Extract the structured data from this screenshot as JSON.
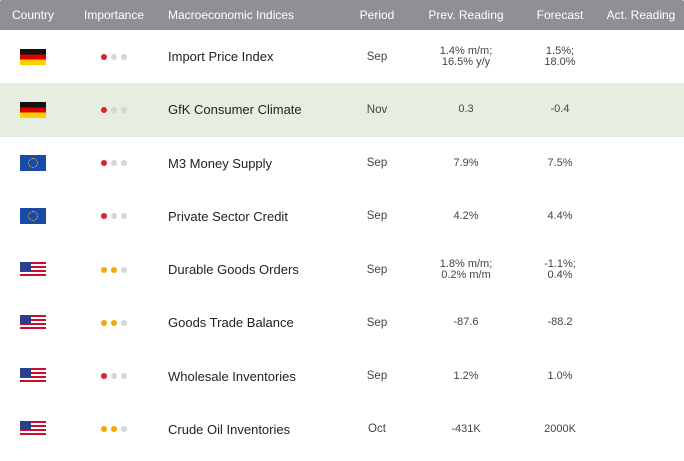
{
  "headers": {
    "country": "Country",
    "importance": "Importance",
    "indices": "Macroeconomic Indices",
    "period": "Period",
    "prev": "Prev. Reading",
    "forecast": "Forecast",
    "actual": "Act. Reading"
  },
  "colors": {
    "header_bg": "#8f9095",
    "highlight_row": "#e6eee2",
    "importance_high": "#e0202a",
    "importance_medium": "#f6a800",
    "importance_off": "#d6d6d6"
  },
  "rows": [
    {
      "country_flag": "germany-flag-icon",
      "importance_level": 1,
      "importance_color": "red",
      "indicator": "Import Price Index",
      "period": "Sep",
      "prev_line1": "1.4% m/m;",
      "prev_line2": "16.5% y/y",
      "forecast_line1": "1.5%;",
      "forecast_line2": "18.0%",
      "actual": ""
    },
    {
      "country_flag": "germany-flag-icon",
      "importance_level": 1,
      "importance_color": "red",
      "indicator": "GfK Consumer Climate",
      "period": "Nov",
      "prev_line1": "0.3",
      "prev_line2": "",
      "forecast_line1": "-0.4",
      "forecast_line2": "",
      "actual": "",
      "highlighted": true
    },
    {
      "country_flag": "eu-flag-icon",
      "importance_level": 1,
      "importance_color": "red",
      "indicator": "M3 Money Supply",
      "period": "Sep",
      "prev_line1": "7.9%",
      "prev_line2": "",
      "forecast_line1": "7.5%",
      "forecast_line2": "",
      "actual": ""
    },
    {
      "country_flag": "eu-flag-icon",
      "importance_level": 1,
      "importance_color": "red",
      "indicator": "Private Sector Credit",
      "period": "Sep",
      "prev_line1": "4.2%",
      "prev_line2": "",
      "forecast_line1": "4.4%",
      "forecast_line2": "",
      "actual": ""
    },
    {
      "country_flag": "us-flag-icon",
      "importance_level": 2,
      "importance_color": "orange",
      "indicator": "Durable Goods Orders",
      "period": "Sep",
      "prev_line1": "1.8% m/m;",
      "prev_line2": "0.2% m/m",
      "forecast_line1": "-1.1%;",
      "forecast_line2": "0.4%",
      "actual": ""
    },
    {
      "country_flag": "us-flag-icon",
      "importance_level": 2,
      "importance_color": "orange",
      "indicator": "Goods Trade Balance",
      "period": "Sep",
      "prev_line1": "-87.6",
      "prev_line2": "",
      "forecast_line1": "-88.2",
      "forecast_line2": "",
      "actual": ""
    },
    {
      "country_flag": "us-flag-icon",
      "importance_level": 1,
      "importance_color": "red",
      "indicator": "Wholesale Inventories",
      "period": "Sep",
      "prev_line1": "1.2%",
      "prev_line2": "",
      "forecast_line1": "1.0%",
      "forecast_line2": "",
      "actual": ""
    },
    {
      "country_flag": "us-flag-icon",
      "importance_level": 2,
      "importance_color": "orange",
      "indicator": "Crude Oil Inventories",
      "period": "Oct",
      "prev_line1": "-431K",
      "prev_line2": "",
      "forecast_line1": "2000K",
      "forecast_line2": "",
      "actual": ""
    }
  ]
}
